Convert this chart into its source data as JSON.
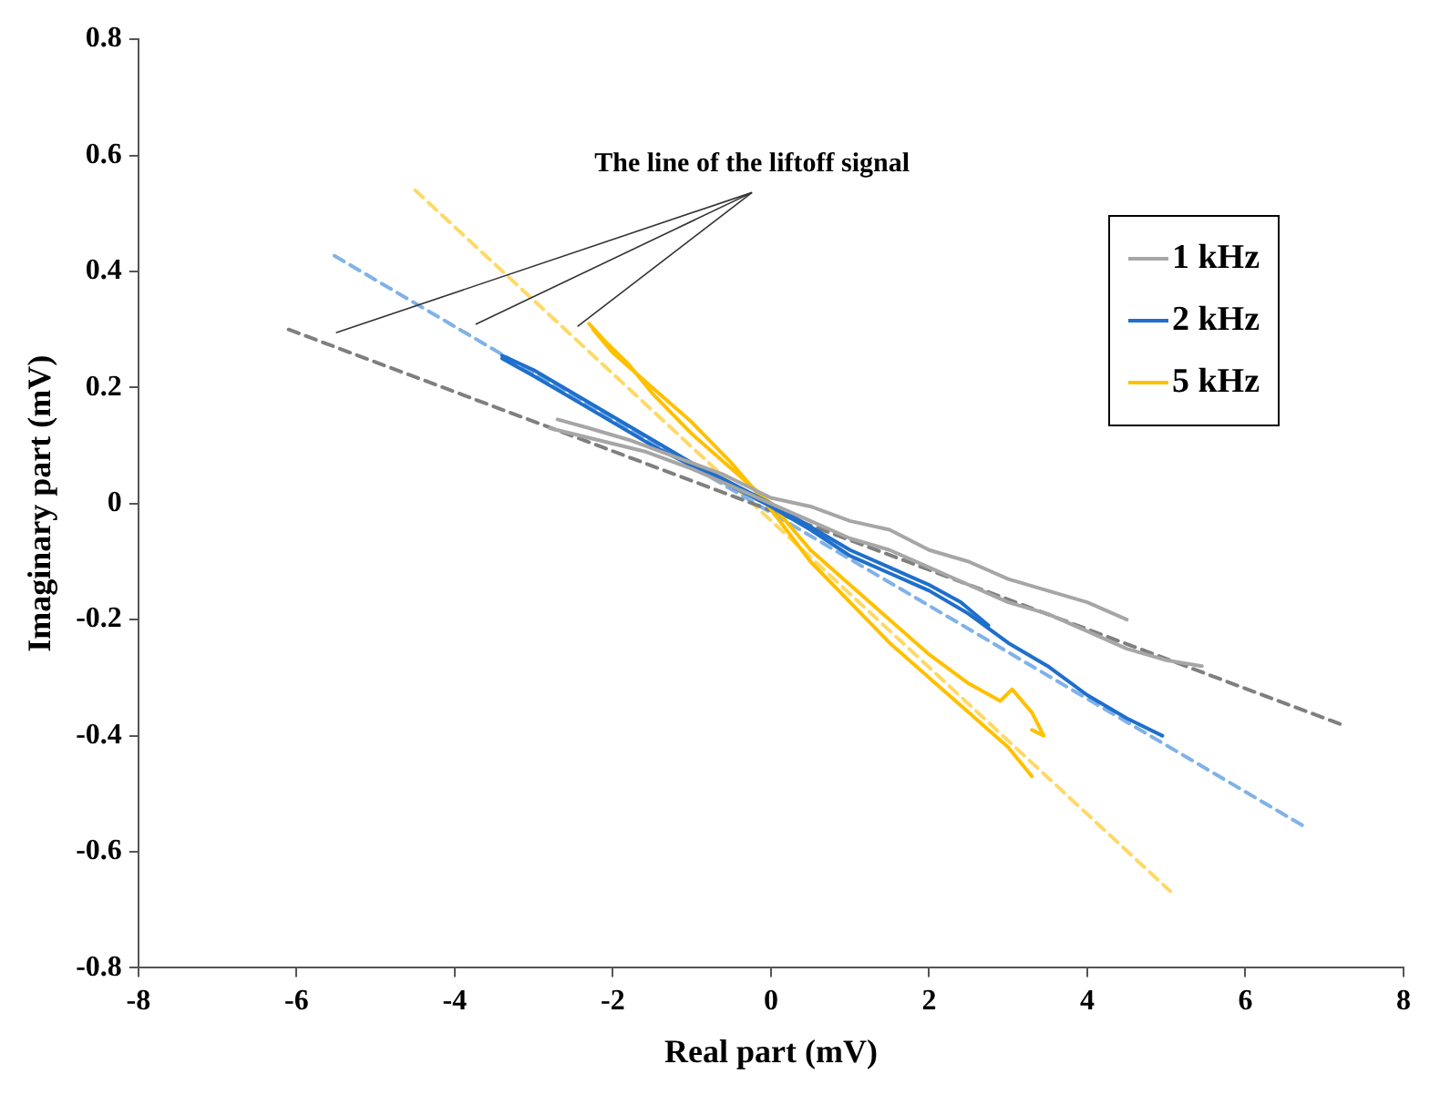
{
  "chart_data": {
    "type": "line",
    "xlabel": "Real part (mV)",
    "ylabel": "Imaginary part (mV)",
    "xlim": [
      -8,
      8
    ],
    "xticks": [
      -8,
      -6,
      -4,
      -2,
      0,
      2,
      4,
      6,
      8
    ],
    "ylim": [
      -0.8,
      0.8
    ],
    "yticks": [
      -0.8,
      -0.6,
      -0.4,
      -0.2,
      0,
      0.2,
      0.4,
      0.6,
      0.8
    ],
    "grid": false,
    "legend": "top right",
    "marker": "none",
    "annotations": [
      "The line of the liftoff signal"
    ],
    "series": [
      {
        "name": "1 kHz",
        "color": "#a6a6a6",
        "line_style": "solid",
        "x": [
          -2.7,
          -2.3,
          -1.8,
          -1.2,
          -0.6,
          0,
          0.5,
          1,
          1.5,
          2,
          2.5,
          3,
          3.5,
          4,
          4.5
        ],
        "values": [
          0.145,
          0.13,
          0.11,
          0.08,
          0.05,
          0.01,
          -0.005,
          -0.03,
          -0.045,
          -0.08,
          -0.1,
          -0.13,
          -0.15,
          -0.17,
          -0.2
        ]
      },
      {
        "color": "#a6a6a6",
        "line_style": "solid",
        "x": [
          -2.8,
          -2.2,
          -1.6,
          -1,
          -0.5,
          0,
          0.5,
          1,
          1.5,
          2,
          2.5,
          3,
          3.5,
          4,
          4.5,
          5,
          5.45
        ],
        "values": [
          0.13,
          0.11,
          0.09,
          0.06,
          0.03,
          0,
          -0.03,
          -0.06,
          -0.08,
          -0.11,
          -0.14,
          -0.17,
          -0.19,
          -0.22,
          -0.25,
          -0.27,
          -0.28
        ]
      },
      {
        "name": "2 kHz",
        "color": "#1f6fcc",
        "line_style": "solid",
        "x": [
          -3.4,
          -3,
          -2.5,
          -2,
          -1.5,
          -1,
          -0.5,
          0,
          0.5,
          1,
          1.5,
          2,
          2.4,
          2.75
        ],
        "values": [
          0.255,
          0.23,
          0.19,
          0.15,
          0.11,
          0.07,
          0.035,
          0,
          -0.04,
          -0.08,
          -0.11,
          -0.14,
          -0.17,
          -0.21
        ]
      },
      {
        "color": "#1f6fcc",
        "line_style": "solid",
        "x": [
          -3.4,
          -3,
          -2.5,
          -2,
          -1.5,
          -1,
          -0.5,
          0,
          0.5,
          1,
          1.5,
          2,
          2.5,
          3,
          3.5,
          4,
          4.5,
          4.95
        ],
        "values": [
          0.25,
          0.22,
          0.18,
          0.14,
          0.1,
          0.065,
          0.03,
          -0.005,
          -0.045,
          -0.09,
          -0.12,
          -0.15,
          -0.19,
          -0.24,
          -0.28,
          -0.33,
          -0.37,
          -0.4
        ]
      },
      {
        "name": "5 kHz",
        "color": "#ffc000",
        "line_style": "solid",
        "x": [
          -2.3,
          -2.1,
          -1.8,
          -1.5,
          -1,
          -0.5,
          0,
          0.5,
          1,
          1.5,
          2,
          2.5,
          2.9,
          3.05,
          3.3,
          3.45,
          3.3
        ],
        "values": [
          0.31,
          0.28,
          0.24,
          0.19,
          0.12,
          0.06,
          0,
          -0.08,
          -0.14,
          -0.2,
          -0.26,
          -0.31,
          -0.34,
          -0.32,
          -0.36,
          -0.4,
          -0.39
        ]
      },
      {
        "color": "#ffc000",
        "line_style": "solid",
        "x": [
          -2.25,
          -2,
          -1.5,
          -1,
          -0.5,
          0,
          0.5,
          1,
          1.5,
          2,
          2.5,
          3,
          3.3
        ],
        "values": [
          0.3,
          0.26,
          0.2,
          0.14,
          0.07,
          -0.01,
          -0.1,
          -0.17,
          -0.24,
          -0.3,
          -0.36,
          -0.42,
          -0.47
        ]
      },
      {
        "color": "#7f7f7f",
        "line_style": "dashed",
        "x": [
          -6.1,
          7.2
        ],
        "values": [
          0.3,
          -0.38
        ]
      },
      {
        "color": "#7fb2e8",
        "line_style": "dashed",
        "x": [
          -5.52,
          6.79
        ],
        "values": [
          0.427,
          -0.56
        ]
      },
      {
        "color": "#ffd966",
        "line_style": "dashed",
        "x": [
          -4.5,
          5.05
        ],
        "values": [
          0.54,
          -0.668
        ]
      }
    ]
  }
}
